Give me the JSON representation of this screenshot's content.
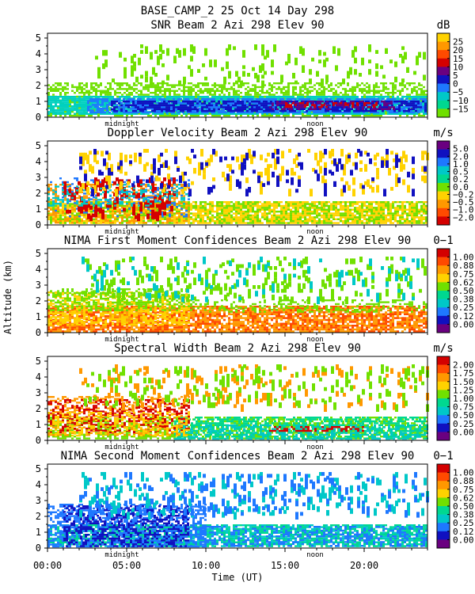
{
  "header": {
    "title": "BASE_CAMP_2   25 Oct 14 Day 298"
  },
  "axes": {
    "ylabel": "Altitude (km)",
    "xlabel": "Time (UT)",
    "xticks": [
      "00:00",
      "05:00",
      "10:00",
      "15:00",
      "20:00"
    ],
    "xtick_hours": [
      0,
      5,
      10,
      15,
      20
    ],
    "yticks": [
      "0",
      "1",
      "2",
      "3",
      "4",
      "5"
    ],
    "ylim": [
      0,
      5.3
    ],
    "xlim": [
      0,
      24
    ],
    "markers": [
      {
        "label": "midnight",
        "hour": 4.7
      },
      {
        "label": "noon",
        "hour": 16.9
      }
    ]
  },
  "chart_data": [
    {
      "type": "heatmap",
      "title": "SNR Beam 2 Azi 298 Elev 90",
      "unit": "dB",
      "colorbar": {
        "labels": [
          "25",
          "20",
          "15",
          "10",
          "5",
          "0",
          "−5",
          "−10",
          "−15"
        ],
        "colors": [
          "#ffd200",
          "#ff9800",
          "#ff4a00",
          "#d40000",
          "#6a0080",
          "#1010c0",
          "#1e78ff",
          "#00c8c8",
          "#00d890",
          "#70e000"
        ]
      },
      "regions": [
        {
          "t0": 0,
          "t1": 24,
          "h0": 0.1,
          "h1": 2.2,
          "color": "#70e000",
          "density": 0.55
        },
        {
          "t0": 0,
          "t1": 24,
          "h0": 0.15,
          "h1": 1.35,
          "color": "#00d0c0",
          "density": 0.85
        },
        {
          "t0": 2.5,
          "t1": 24,
          "h0": 0.25,
          "h1": 1.2,
          "color": "#1e78ff",
          "density": 0.7
        },
        {
          "t0": 4,
          "t1": 24,
          "h0": 0.35,
          "h1": 1.05,
          "color": "#1010c0",
          "density": 0.6
        },
        {
          "t0": 14,
          "t1": 22,
          "h0": 0.45,
          "h1": 1.05,
          "color": "#6a0080",
          "density": 0.5
        },
        {
          "t0": 15,
          "t1": 21,
          "h0": 0.55,
          "h1": 0.95,
          "color": "#d40000",
          "density": 0.35
        },
        {
          "t0": 3,
          "t1": 24,
          "h0": 2.2,
          "h1": 4.6,
          "color": "#70e000",
          "density": 0.06
        }
      ]
    },
    {
      "type": "heatmap",
      "title": "Doppler Velocity Beam 2 Azi 298 Elev 90",
      "unit": "m/s",
      "colorbar": {
        "labels": [
          "5.0",
          "2.0",
          "1.0",
          "0.5",
          "0.2",
          "0.0",
          "−0.2",
          "−0.5",
          "−1.0",
          "−2.0"
        ],
        "colors": [
          "#6a0080",
          "#1010c0",
          "#1e78ff",
          "#00c8c8",
          "#00d890",
          "#70e000",
          "#ffd200",
          "#ff9800",
          "#ff4a00",
          "#d40000"
        ]
      },
      "regions": [
        {
          "t0": 0,
          "t1": 24,
          "h0": 0.05,
          "h1": 1.5,
          "color": "#ffd200",
          "density": 0.75
        },
        {
          "t0": 0,
          "t1": 24,
          "h0": 0.05,
          "h1": 1.5,
          "color": "#70e000",
          "density": 0.35
        },
        {
          "t0": 0,
          "t1": 9,
          "h0": 0.1,
          "h1": 2.6,
          "color": "#ff9800",
          "density": 0.35
        },
        {
          "t0": 0,
          "t1": 9,
          "h0": 0.5,
          "h1": 3.0,
          "color": "#1e78ff",
          "density": 0.15
        },
        {
          "t0": 1,
          "t1": 8,
          "h0": 0.5,
          "h1": 3.0,
          "color": "#d40000",
          "density": 0.12
        },
        {
          "t0": 0,
          "t1": 9,
          "h0": 1.2,
          "h1": 2.6,
          "color": "#00c8c8",
          "density": 0.25
        },
        {
          "t0": 2,
          "t1": 24,
          "h0": 2.2,
          "h1": 4.8,
          "color": "#ffd200",
          "density": 0.07
        },
        {
          "t0": 2,
          "t1": 24,
          "h0": 2.2,
          "h1": 4.8,
          "color": "#1010c0",
          "density": 0.04
        }
      ]
    },
    {
      "type": "heatmap",
      "title": "NIMA First Moment Confidences Beam 2 Azi 298 Elev 90",
      "unit": "0−1",
      "colorbar": {
        "labels": [
          "1.00",
          "0.88",
          "0.75",
          "0.62",
          "0.50",
          "0.38",
          "0.25",
          "0.12",
          "0.00"
        ],
        "colors": [
          "#d40000",
          "#ff4a00",
          "#ff9800",
          "#ffd200",
          "#70e000",
          "#00d890",
          "#00c8c8",
          "#1e78ff",
          "#1010c0",
          "#6a0080"
        ]
      },
      "regions": [
        {
          "t0": 0,
          "t1": 24,
          "h0": 0.05,
          "h1": 1.7,
          "color": "#ff9800",
          "density": 0.7
        },
        {
          "t0": 0,
          "t1": 24,
          "h0": 0.05,
          "h1": 1.7,
          "color": "#ff4a00",
          "density": 0.35
        },
        {
          "t0": 0,
          "t1": 9,
          "h0": 0.5,
          "h1": 2.6,
          "color": "#ffd200",
          "density": 0.5
        },
        {
          "t0": 0,
          "t1": 9,
          "h0": 1.4,
          "h1": 2.8,
          "color": "#70e000",
          "density": 0.45
        },
        {
          "t0": 9,
          "t1": 24,
          "h0": 1.3,
          "h1": 2.1,
          "color": "#70e000",
          "density": 0.3
        },
        {
          "t0": 2,
          "t1": 24,
          "h0": 2.2,
          "h1": 4.8,
          "color": "#70e000",
          "density": 0.08
        },
        {
          "t0": 2,
          "t1": 24,
          "h0": 2.2,
          "h1": 4.8,
          "color": "#00c8c8",
          "density": 0.03
        }
      ]
    },
    {
      "type": "heatmap",
      "title": "Spectral Width Beam 2 Azi 298 Elev 90",
      "unit": "m/s",
      "colorbar": {
        "labels": [
          "2.00",
          "1.75",
          "1.50",
          "1.25",
          "1.00",
          "0.75",
          "0.50",
          "0.25",
          "0.00"
        ],
        "colors": [
          "#d40000",
          "#ff4a00",
          "#ff9800",
          "#ffd200",
          "#70e000",
          "#00d890",
          "#00c8c8",
          "#1e78ff",
          "#1010c0",
          "#6a0080"
        ]
      },
      "regions": [
        {
          "t0": 0,
          "t1": 24,
          "h0": 0.05,
          "h1": 1.5,
          "color": "#70e000",
          "density": 0.6
        },
        {
          "t0": 8,
          "t1": 24,
          "h0": 0.05,
          "h1": 1.5,
          "color": "#00d890",
          "density": 0.5
        },
        {
          "t0": 8,
          "t1": 24,
          "h0": 0.1,
          "h1": 1.0,
          "color": "#00c8c8",
          "density": 0.35
        },
        {
          "t0": 0,
          "t1": 9,
          "h0": 0.3,
          "h1": 2.8,
          "color": "#ff9800",
          "density": 0.35
        },
        {
          "t0": 0,
          "t1": 9,
          "h0": 0.5,
          "h1": 2.6,
          "color": "#d40000",
          "density": 0.35
        },
        {
          "t0": 0,
          "t1": 9,
          "h0": 0.2,
          "h1": 1.8,
          "color": "#ffd200",
          "density": 0.3
        },
        {
          "t0": 14,
          "t1": 20,
          "h0": 0.55,
          "h1": 0.9,
          "color": "#d40000",
          "density": 0.45
        },
        {
          "t0": 2,
          "t1": 24,
          "h0": 2.2,
          "h1": 4.8,
          "color": "#ff9800",
          "density": 0.05
        },
        {
          "t0": 2,
          "t1": 24,
          "h0": 2.2,
          "h1": 4.8,
          "color": "#70e000",
          "density": 0.05
        }
      ]
    },
    {
      "type": "heatmap",
      "title": "NIMA Second Moment Confidences Beam 2 Azi 298 Elev 90",
      "unit": "0−1",
      "colorbar": {
        "labels": [
          "1.00",
          "0.88",
          "0.75",
          "0.62",
          "0.50",
          "0.38",
          "0.25",
          "0.12",
          "0.00"
        ],
        "colors": [
          "#d40000",
          "#ff4a00",
          "#ff9800",
          "#ffd200",
          "#70e000",
          "#00d890",
          "#00c8c8",
          "#1e78ff",
          "#1010c0",
          "#6a0080"
        ]
      },
      "regions": [
        {
          "t0": 0,
          "t1": 24,
          "h0": 0.05,
          "h1": 1.5,
          "color": "#00c8c8",
          "density": 0.55
        },
        {
          "t0": 0,
          "t1": 24,
          "h0": 0.05,
          "h1": 1.5,
          "color": "#00d890",
          "density": 0.45
        },
        {
          "t0": 0,
          "t1": 10,
          "h0": 0.05,
          "h1": 2.8,
          "color": "#1e78ff",
          "density": 0.55
        },
        {
          "t0": 1,
          "t1": 9,
          "h0": 0.1,
          "h1": 2.7,
          "color": "#1010c0",
          "density": 0.4
        },
        {
          "t0": 9,
          "t1": 24,
          "h0": 0.05,
          "h1": 1.4,
          "color": "#1e78ff",
          "density": 0.35
        },
        {
          "t0": 2,
          "t1": 24,
          "h0": 2.2,
          "h1": 4.8,
          "color": "#00c8c8",
          "density": 0.07
        },
        {
          "t0": 2,
          "t1": 24,
          "h0": 2.2,
          "h1": 4.8,
          "color": "#1e78ff",
          "density": 0.05
        }
      ]
    }
  ]
}
